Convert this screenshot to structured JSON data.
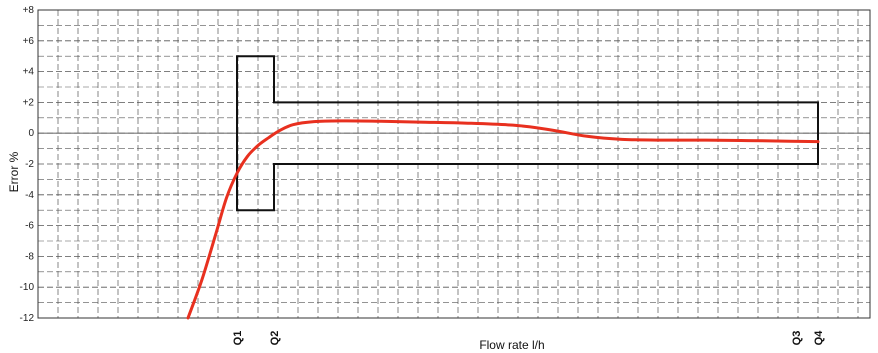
{
  "chart_data": {
    "type": "line",
    "title": "",
    "xlabel": "Flow rate l/h",
    "ylabel": "Error %",
    "ylim": [
      -12,
      8
    ],
    "y_ticks": [
      "+8",
      "+6",
      "+4",
      "+2",
      "0",
      "-2",
      "-4",
      "-6",
      "-8",
      "-10",
      "-12"
    ],
    "x_markers": [
      "Q1",
      "Q2",
      "Q3",
      "Q4"
    ],
    "grid": true,
    "colors": {
      "curve": "#e8301f",
      "envelope": "#111111",
      "grid": "#555555",
      "zero": "#777777"
    },
    "envelope": {
      "note_positions": "x given relative to the Q markers",
      "lower_zone": {
        "from": "Q1",
        "to": "Q2",
        "limits": [
          5,
          -5
        ]
      },
      "upper_zone": {
        "from": "Q2",
        "to": "Q4",
        "limits": [
          2,
          -2
        ]
      }
    },
    "series": [
      {
        "x_frac": [
          0.0,
          0.02,
          0.04,
          0.055,
          0.07,
          0.085,
          0.1,
          0.115,
          0.13,
          0.15,
          0.18,
          0.22,
          0.27,
          0.33,
          0.4,
          0.47,
          0.52,
          0.57,
          0.62,
          0.68,
          0.74,
          0.8,
          0.86,
          0.9
        ],
        "values": [
          -12,
          -9.5,
          -6.5,
          -4.2,
          -2.6,
          -1.5,
          -0.8,
          -0.3,
          0.15,
          0.55,
          0.75,
          0.8,
          0.78,
          0.72,
          0.65,
          0.5,
          0.2,
          -0.2,
          -0.4,
          -0.45,
          -0.45,
          -0.48,
          -0.52,
          -0.55
        ]
      }
    ]
  }
}
